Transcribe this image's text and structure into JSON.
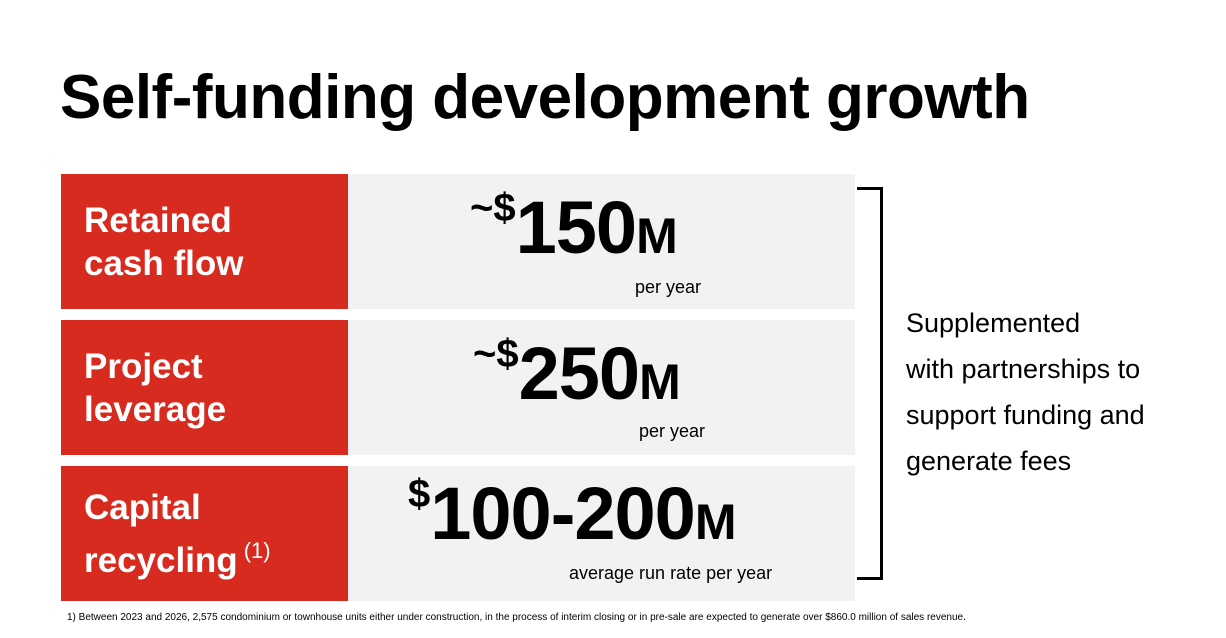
{
  "title": "Self-funding development growth",
  "rows": [
    {
      "label_lines": [
        "Retained",
        "cash flow"
      ],
      "label_note": "",
      "prefix": "~$",
      "number": "150",
      "unit": "M",
      "sub": "per year"
    },
    {
      "label_lines": [
        "Project",
        "leverage"
      ],
      "label_note": "",
      "prefix": "~$",
      "number": "250",
      "unit": "M",
      "sub": "per year"
    },
    {
      "label_lines": [
        "Capital",
        "recycling"
      ],
      "label_note": "(1)",
      "prefix": "$",
      "number": "100-200",
      "unit": "M",
      "sub": "average run rate per year"
    }
  ],
  "side_text": [
    "Supplemented",
    "with partnerships to",
    "support funding and",
    "generate fees"
  ],
  "footnote": "1) Between 2023 and 2026, 2,575 condominium or townhouse units either under construction, in the process of interim closing or in pre-sale are expected to generate over $860.0 million of sales revenue.",
  "colors": {
    "accent_red": "#d72b20",
    "panel_gray": "#f2f2f2"
  }
}
